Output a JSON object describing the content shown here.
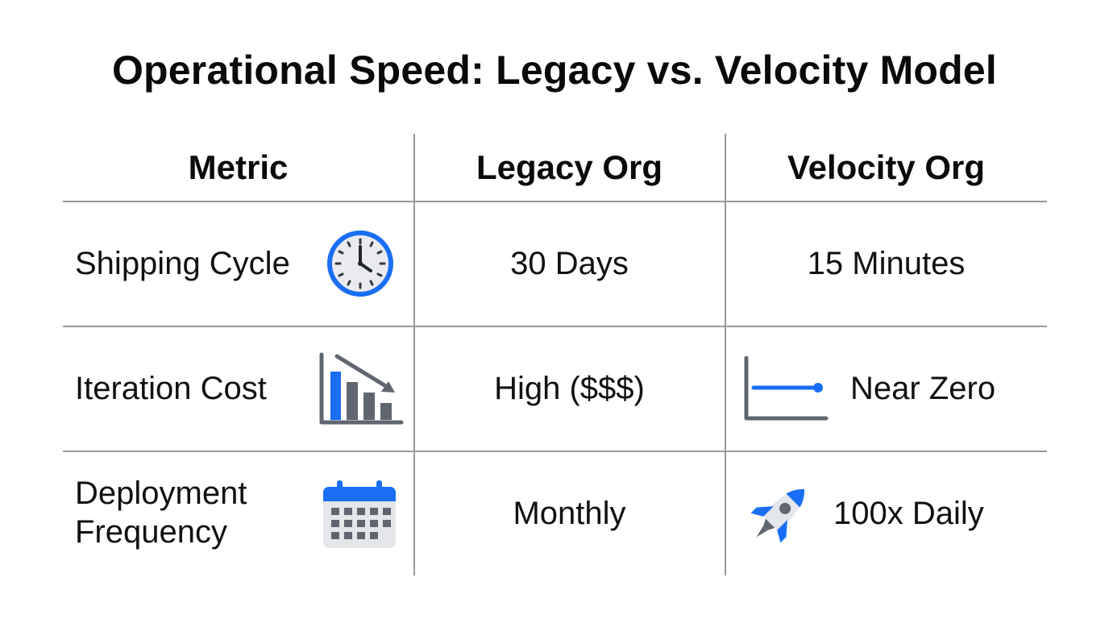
{
  "title": "Operational Speed: Legacy vs. Velocity Model",
  "table": {
    "headers": [
      "Metric",
      "Legacy Org",
      "Velocity Org"
    ],
    "rows": [
      {
        "metric": "Shipping Cycle",
        "metric_icon": "clock-icon",
        "legacy": "30 Days",
        "velocity": "15 Minutes",
        "velocity_icon": ""
      },
      {
        "metric": "Iteration Cost",
        "metric_icon": "declining-bar-chart-icon",
        "legacy": "High ($$$)",
        "velocity": "Near Zero",
        "velocity_icon": "flat-line-chart-icon"
      },
      {
        "metric": "Deployment Frequency",
        "metric_icon": "calendar-icon",
        "legacy": "Monthly",
        "velocity": "100x Daily",
        "velocity_icon": "rocket-icon"
      }
    ]
  },
  "colors": {
    "accent_blue": "#1a6ef5",
    "icon_gray": "#5f6670",
    "grid_line": "#9a9a9a"
  }
}
